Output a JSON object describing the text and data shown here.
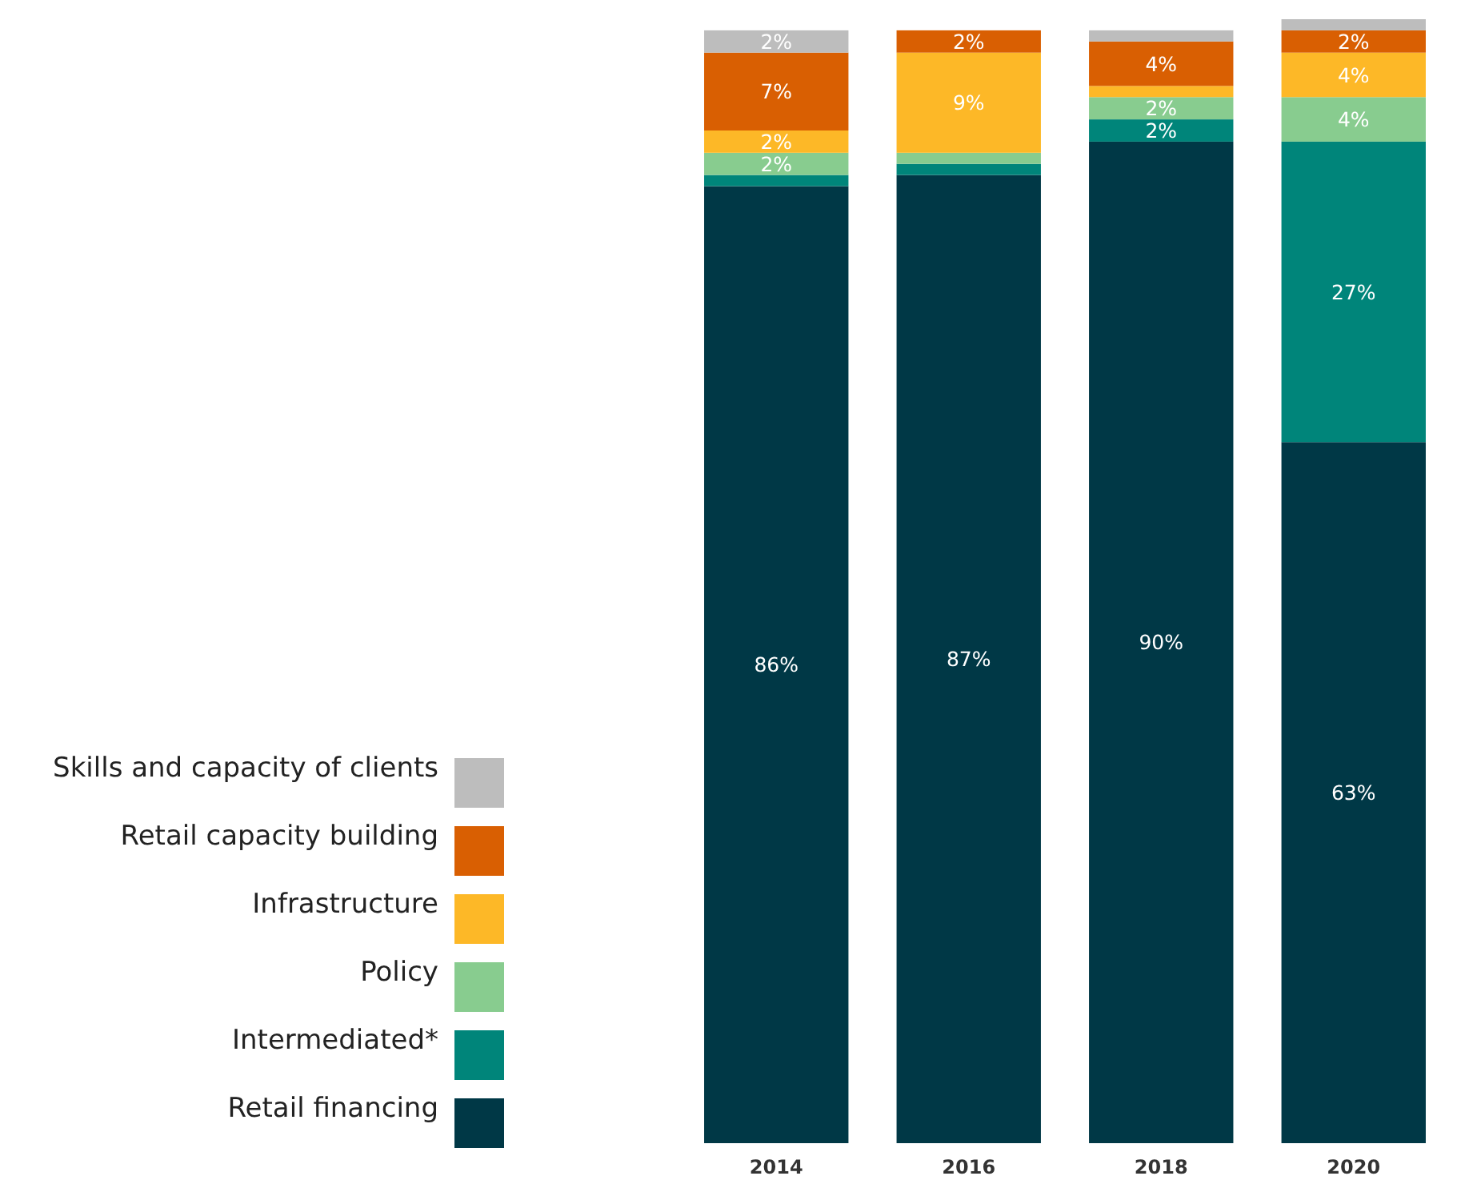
{
  "chart_data": {
    "type": "bar",
    "stacked": true,
    "legend": "left",
    "categories": [
      "2014",
      "2016",
      "2018",
      "2020"
    ],
    "series": [
      {
        "name": "Retail financing",
        "color": "#003846",
        "values": [
          86,
          87,
          90,
          63
        ],
        "value_labels": [
          "86%",
          "87%",
          "90%",
          "63%"
        ]
      },
      {
        "name": "Intermediated*",
        "color": "#00857a",
        "values": [
          1,
          1,
          2,
          27
        ],
        "value_labels": [
          null,
          null,
          "2%",
          "27%"
        ]
      },
      {
        "name": "Policy",
        "color": "#88cc8f",
        "values": [
          2,
          1,
          2,
          4
        ],
        "value_labels": [
          "2%",
          null,
          "2%",
          "4%"
        ]
      },
      {
        "name": "Infrastructure",
        "color": "#fdb827",
        "values": [
          2,
          9,
          1,
          4
        ],
        "value_labels": [
          "2%",
          "9%",
          null,
          "4%"
        ]
      },
      {
        "name": "Retail capacity building",
        "color": "#d95f02",
        "values": [
          7,
          2,
          4,
          2
        ],
        "value_labels": [
          "7%",
          "2%",
          "4%",
          "2%"
        ]
      },
      {
        "name": "Skills and capacity of clients",
        "color": "#bdbdbd",
        "values": [
          2,
          0,
          1,
          1
        ],
        "value_labels": [
          "2%",
          null,
          null,
          null
        ]
      }
    ]
  }
}
